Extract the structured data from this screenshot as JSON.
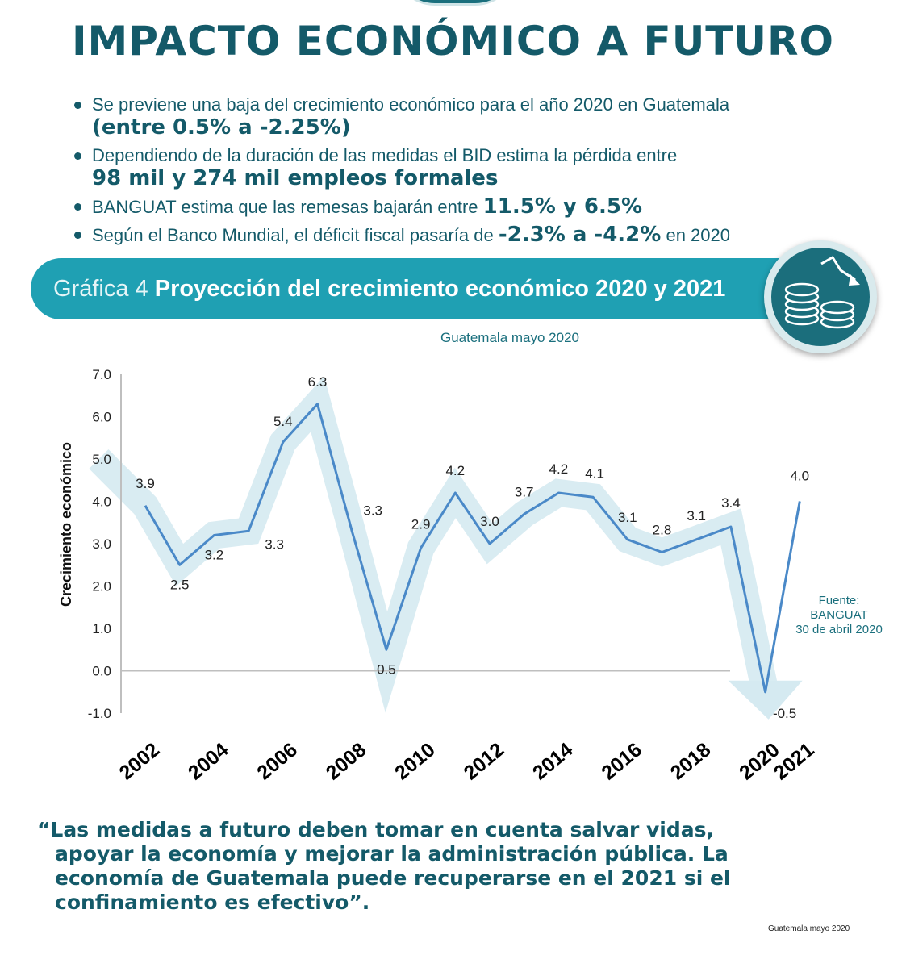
{
  "header": {
    "title": "IMPACTO ECONÓMICO A FUTURO"
  },
  "bullets": [
    {
      "pre": "Se previene una baja del crecimiento económico para el año 2020 en Guatemala",
      "big": "(entre 0.5% a -2.25%)"
    },
    {
      "pre": "Dependiendo de la duración de las medidas el BID estima la pérdida entre",
      "big": "98 mil y 274 mil empleos formales"
    },
    {
      "pre": "BANGUAT estima que las remesas bajarán entre",
      "big": "11.5% y 6.5%"
    },
    {
      "pre": "Según el Banco Mundial, el déficit fiscal pasaría de",
      "big": "-2.3% a -4.2%",
      "post": "en 2020"
    }
  ],
  "banner": {
    "label": "Gráfica 4",
    "title": "Proyección del crecimiento económico 2020 y 2021",
    "icon": "coins-falling-arrow-icon"
  },
  "chart_data": {
    "type": "line",
    "subtitle": "Guatemala mayo 2020",
    "ylabel": "Crecimiento económico",
    "xlabel": "",
    "ylim": [
      -1.0,
      7.0
    ],
    "yticks": [
      "-1.0",
      "0.0",
      "1.0",
      "2.0",
      "3.0",
      "4.0",
      "5.0",
      "6.0",
      "7.0"
    ],
    "x": [
      "2002",
      "2003",
      "2004",
      "2005",
      "2006",
      "2007",
      "2008",
      "2009",
      "2010",
      "2011",
      "2012",
      "2013",
      "2014",
      "2015",
      "2016",
      "2017",
      "2018",
      "2019",
      "2020",
      "2021"
    ],
    "xtick_labels": [
      "2002",
      "2004",
      "2006",
      "2008",
      "2010",
      "2012",
      "2014",
      "2016",
      "2018",
      "2020",
      "2021"
    ],
    "series": [
      {
        "name": "Crecimiento económico",
        "values": [
          3.9,
          2.5,
          3.2,
          3.3,
          5.4,
          6.3,
          3.3,
          0.5,
          2.9,
          4.2,
          3.0,
          3.7,
          4.2,
          4.1,
          3.1,
          2.8,
          3.1,
          3.4,
          -0.5,
          4.0
        ],
        "color": "#4a89c8"
      }
    ],
    "trend_band_color": "#d5eaf1",
    "grid": false
  },
  "source": {
    "l1": "Fuente:",
    "l2": "BANGUAT",
    "l3": "30 de abril 2020"
  },
  "quote": {
    "l1": "“Las medidas a futuro deben tomar en cuenta salvar vidas,",
    "l2": "apoyar la economía y mejorar la administración pública. La",
    "l3": "economía de Guatemala puede recuperarse en el 2021 si el",
    "l4": "confinamiento es efectivo”."
  },
  "footer": {
    "note": "Guatemala mayo 2020"
  },
  "colors": {
    "primary": "#145a69",
    "banner": "#1fa0b3",
    "line": "#4a89c8",
    "band": "#d5eaf1"
  }
}
